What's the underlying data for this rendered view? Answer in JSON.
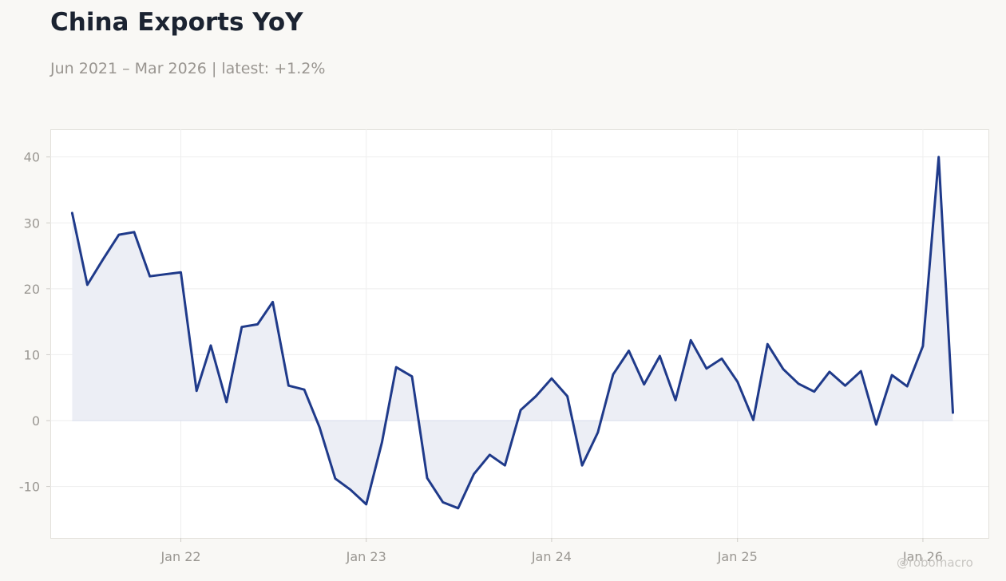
{
  "header": {
    "title": "China Exports YoY",
    "subtitle": "Jun 2021 – Mar 2026 | latest: +1.2%"
  },
  "watermark": "@robomacro",
  "colors": {
    "line": "#1f3a8a",
    "fill": "#eceef5",
    "grid": "#eeeeee",
    "frame": "#e2e0db",
    "background": "#f9f8f5",
    "plot_background": "#ffffff"
  },
  "chart_data": {
    "type": "area",
    "title": "China Exports YoY",
    "xlabel": "",
    "ylabel": "",
    "ylim": [
      -17.8,
      44.2
    ],
    "xlim": [
      "2021-04-19",
      "2026-05-10"
    ],
    "grid": true,
    "legend": "none",
    "y_ticks": [
      -10,
      0,
      10,
      20,
      30,
      40
    ],
    "x_ticks": [
      {
        "date": "2022-01-01",
        "label": "Jan 22"
      },
      {
        "date": "2023-01-01",
        "label": "Jan 23"
      },
      {
        "date": "2024-01-01",
        "label": "Jan 24"
      },
      {
        "date": "2025-01-01",
        "label": "Jan 25"
      },
      {
        "date": "2026-01-01",
        "label": "Jan 26"
      }
    ],
    "series": [
      {
        "x": [
          "2021-06",
          "2021-07",
          "2021-08",
          "2021-09",
          "2021-10",
          "2021-11",
          "2021-12",
          "2022-01",
          "2022-02",
          "2022-03",
          "2022-04",
          "2022-05",
          "2022-06",
          "2022-07",
          "2022-08",
          "2022-09",
          "2022-10",
          "2022-11",
          "2022-12",
          "2023-01",
          "2023-02",
          "2023-03",
          "2023-04",
          "2023-05",
          "2023-06",
          "2023-07",
          "2023-08",
          "2023-09",
          "2023-10",
          "2023-11",
          "2023-12",
          "2024-01",
          "2024-02",
          "2024-03",
          "2024-04",
          "2024-05",
          "2024-06",
          "2024-07",
          "2024-08",
          "2024-09",
          "2024-10",
          "2024-11",
          "2024-12",
          "2025-01",
          "2025-02",
          "2025-03",
          "2025-04",
          "2025-05",
          "2025-06",
          "2025-07",
          "2025-08",
          "2025-09",
          "2025-10",
          "2025-11",
          "2025-12",
          "2026-01",
          "2026-02",
          "2026-03"
        ],
        "values": [
          31.5,
          20.6,
          24.5,
          28.2,
          28.6,
          21.9,
          22.2,
          22.5,
          4.5,
          11.4,
          2.8,
          14.2,
          14.6,
          18.0,
          5.3,
          4.7,
          -1.0,
          -8.8,
          -10.5,
          -12.7,
          -3.3,
          8.1,
          6.7,
          -8.7,
          -12.4,
          -13.3,
          -8.1,
          -5.2,
          -6.8,
          1.6,
          3.7,
          6.4,
          3.7,
          -6.8,
          -1.8,
          7.0,
          10.6,
          5.5,
          9.8,
          3.1,
          12.2,
          7.9,
          9.4,
          5.9,
          0.1,
          11.6,
          7.8,
          5.6,
          4.4,
          7.4,
          5.3,
          7.5,
          -0.6,
          6.9,
          5.2,
          11.3,
          40.0,
          1.2
        ]
      }
    ]
  }
}
